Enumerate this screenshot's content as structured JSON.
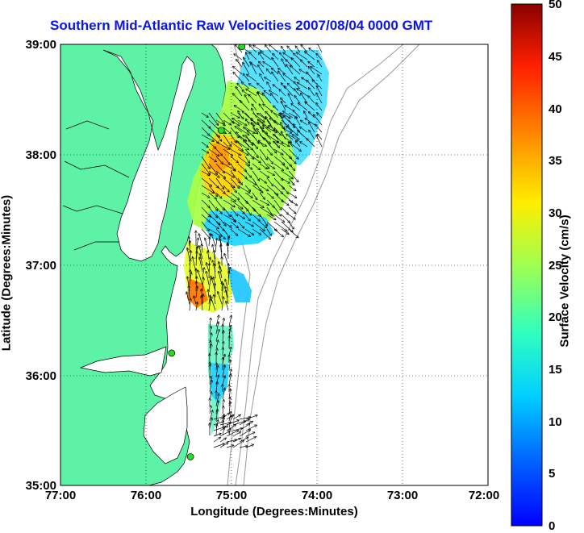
{
  "title": "Southern Mid-Atlantic Raw Velocities 2007/08/04 0000 GMT",
  "axes": {
    "xlabel": "Longitude (Degrees:Minutes)",
    "ylabel": "Latitude (Degrees:Minutes)",
    "xticks": [
      "77:00",
      "76:00",
      "75:00",
      "74:00",
      "73:00",
      "72:00"
    ],
    "yticks": [
      "39:00",
      "38:00",
      "37:00",
      "36:00",
      "35:00"
    ],
    "xlim": [
      -77,
      -72
    ],
    "ylim": [
      35,
      39
    ],
    "grid": true
  },
  "colorbar": {
    "label": "Surface Velocity (cm/s)",
    "ticks": [
      "50",
      "45",
      "40",
      "35",
      "30",
      "25",
      "20",
      "15",
      "10",
      "5",
      "0"
    ],
    "range": [
      0,
      50
    ],
    "colormap": "jet"
  },
  "colors": {
    "land": "#5ef2a6",
    "water": "#ffffff",
    "title": "#0a14f0",
    "station": "#22dd22",
    "bathymetry": "#999999"
  },
  "stations": [
    {
      "lon": -74.88,
      "lat": 38.98
    },
    {
      "lon": -75.12,
      "lat": 38.22
    },
    {
      "lon": -75.7,
      "lat": 36.2
    },
    {
      "lon": -75.48,
      "lat": 35.26
    }
  ]
}
